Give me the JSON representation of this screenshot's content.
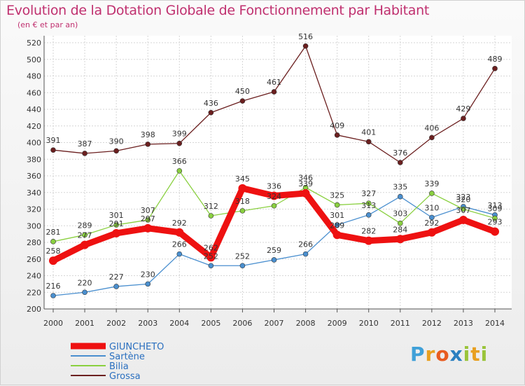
{
  "header": {
    "title": "Evolution de la Dotation Globale de Fonctionnement par Habitant",
    "subtitle": "(en € et par an)"
  },
  "logo": {
    "letters": [
      "P",
      "r",
      "o",
      "x",
      "i",
      "t",
      "i"
    ],
    "colors": [
      "#3fa0d8",
      "#e8a020",
      "#e85c20",
      "#2a7fc0",
      "#9ac43a",
      "#e8a020",
      "#9ac43a"
    ]
  },
  "chart_data": {
    "type": "line",
    "title": "Evolution de la Dotation Globale de Fonctionnement par Habitant",
    "subtitle": "(en € et par an)",
    "xlabel": "",
    "ylabel": "",
    "x": [
      "2000",
      "2001",
      "2002",
      "2003",
      "2004",
      "2005",
      "2006",
      "2007",
      "2008",
      "2009",
      "2010",
      "2011",
      "2012",
      "2013",
      "2014"
    ],
    "ylim": [
      200,
      520
    ],
    "yticks": [
      200,
      220,
      240,
      260,
      280,
      300,
      320,
      340,
      360,
      380,
      400,
      420,
      440,
      460,
      480,
      500,
      520
    ],
    "grid": true,
    "legend_position": "bottom-left",
    "series": [
      {
        "name": "GIUNCHETO",
        "color": "#ee1111",
        "width": 9,
        "marker": 6,
        "values": [
          258,
          277,
          291,
          297,
          292,
          262,
          345,
          336,
          339,
          289,
          282,
          284,
          292,
          307,
          293
        ]
      },
      {
        "name": "Sartène",
        "color": "#4a8fcf",
        "width": 1.3,
        "marker": 3.5,
        "values": [
          216,
          220,
          227,
          230,
          266,
          252,
          252,
          259,
          266,
          301,
          313,
          335,
          310,
          323,
          313
        ]
      },
      {
        "name": "Bilia",
        "color": "#8ad040",
        "width": 1.3,
        "marker": 3.5,
        "values": [
          281,
          289,
          301,
          307,
          366,
          312,
          318,
          324,
          346,
          325,
          327,
          303,
          339,
          320,
          309
        ]
      },
      {
        "name": "Grossa",
        "color": "#6b1f1f",
        "width": 1.3,
        "marker": 3.5,
        "values": [
          391,
          387,
          390,
          398,
          399,
          436,
          450,
          461,
          516,
          409,
          401,
          376,
          406,
          429,
          489
        ]
      }
    ]
  }
}
